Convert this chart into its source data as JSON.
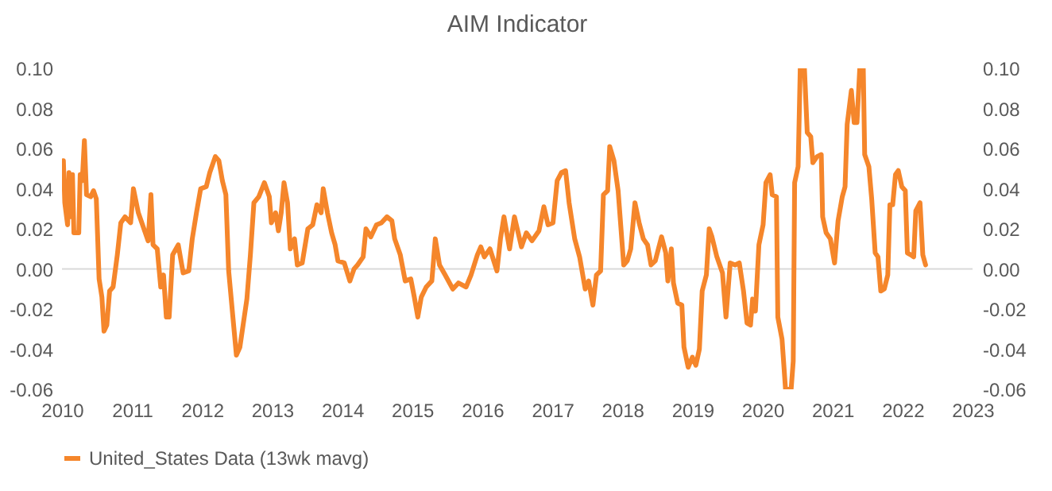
{
  "chart_data": {
    "type": "line",
    "title": "AIM Indicator",
    "x": [
      2010.02,
      2010.04,
      2010.08,
      2010.1,
      2010.13,
      2010.15,
      2010.17,
      2010.24,
      2010.26,
      2010.29,
      2010.32,
      2010.35,
      2010.41,
      2010.45,
      2010.49,
      2010.53,
      2010.57,
      2010.6,
      2010.64,
      2010.68,
      2010.73,
      2010.79,
      2010.84,
      2010.9,
      2010.98,
      2011.02,
      2011.09,
      2011.17,
      2011.23,
      2011.27,
      2011.3,
      2011.36,
      2011.41,
      2011.45,
      2011.49,
      2011.53,
      2011.58,
      2011.66,
      2011.73,
      2011.81,
      2011.86,
      2011.92,
      2011.98,
      2012.06,
      2012.11,
      2012.19,
      2012.24,
      2012.29,
      2012.34,
      2012.38,
      2012.44,
      2012.49,
      2012.54,
      2012.59,
      2012.64,
      2012.69,
      2012.74,
      2012.81,
      2012.89,
      2012.96,
      2012.99,
      2013.05,
      2013.09,
      2013.13,
      2013.17,
      2013.22,
      2013.26,
      2013.32,
      2013.36,
      2013.43,
      2013.51,
      2013.58,
      2013.64,
      2013.7,
      2013.73,
      2013.79,
      2013.85,
      2013.9,
      2013.94,
      2014.03,
      2014.11,
      2014.17,
      2014.22,
      2014.3,
      2014.34,
      2014.41,
      2014.49,
      2014.56,
      2014.64,
      2014.71,
      2014.75,
      2014.83,
      2014.9,
      2014.98,
      2015.03,
      2015.08,
      2015.13,
      2015.2,
      2015.28,
      2015.33,
      2015.39,
      2015.47,
      2015.58,
      2015.66,
      2015.77,
      2015.84,
      2015.93,
      2015.98,
      2016.03,
      2016.11,
      2016.21,
      2016.26,
      2016.31,
      2016.39,
      2016.46,
      2016.56,
      2016.63,
      2016.71,
      2016.81,
      2016.88,
      2016.94,
      2017.01,
      2017.07,
      2017.13,
      2017.19,
      2017.24,
      2017.32,
      2017.39,
      2017.47,
      2017.52,
      2017.58,
      2017.63,
      2017.69,
      2017.73,
      2017.79,
      2017.82,
      2017.88,
      2017.94,
      2018.02,
      2018.07,
      2018.12,
      2018.18,
      2018.24,
      2018.3,
      2018.36,
      2018.41,
      2018.47,
      2018.56,
      2018.62,
      2018.65,
      2018.7,
      2018.73,
      2018.79,
      2018.85,
      2018.88,
      2018.94,
      2019.0,
      2019.05,
      2019.1,
      2019.14,
      2019.2,
      2019.24,
      2019.28,
      2019.35,
      2019.43,
      2019.48,
      2019.54,
      2019.61,
      2019.67,
      2019.73,
      2019.78,
      2019.83,
      2019.86,
      2019.9,
      2019.95,
      2020.01,
      2020.05,
      2020.11,
      2020.14,
      2020.2,
      2020.22,
      2020.28,
      2020.33,
      2020.41,
      2020.44,
      2020.46,
      2020.51,
      2020.54,
      2020.6,
      2020.64,
      2020.69,
      2020.72,
      2020.78,
      2020.84,
      2020.86,
      2020.91,
      2020.97,
      2021.03,
      2021.08,
      2021.14,
      2021.18,
      2021.21,
      2021.27,
      2021.31,
      2021.35,
      2021.39,
      2021.44,
      2021.46,
      2021.52,
      2021.56,
      2021.61,
      2021.65,
      2021.69,
      2021.74,
      2021.79,
      2021.82,
      2021.86,
      2021.9,
      2021.94,
      2021.99,
      2022.04,
      2022.07,
      2022.12,
      2022.16,
      2022.19,
      2022.25,
      2022.29,
      2022.33
    ],
    "series": [
      {
        "name": "United_States Data (13wk mavg)",
        "color": "#f5862b",
        "values": [
          0.054,
          0.033,
          0.022,
          0.048,
          0.026,
          0.047,
          0.018,
          0.018,
          0.047,
          0.044,
          0.064,
          0.037,
          0.036,
          0.039,
          0.035,
          -0.005,
          -0.014,
          -0.031,
          -0.028,
          -0.011,
          -0.009,
          0.007,
          0.023,
          0.026,
          0.023,
          0.04,
          0.028,
          0.02,
          0.014,
          0.037,
          0.012,
          0.01,
          -0.009,
          -0.003,
          -0.024,
          -0.024,
          0.007,
          0.012,
          -0.002,
          -0.001,
          0.015,
          0.028,
          0.04,
          0.041,
          0.048,
          0.056,
          0.054,
          0.044,
          0.037,
          -0.001,
          -0.024,
          -0.043,
          -0.039,
          -0.027,
          -0.015,
          0.007,
          0.033,
          0.036,
          0.043,
          0.036,
          0.023,
          0.028,
          0.019,
          0.028,
          0.043,
          0.033,
          0.01,
          0.015,
          0.002,
          0.003,
          0.02,
          0.022,
          0.032,
          0.028,
          0.04,
          0.028,
          0.018,
          0.012,
          0.004,
          0.003,
          -0.006,
          0.0,
          0.002,
          0.006,
          0.02,
          0.016,
          0.022,
          0.023,
          0.026,
          0.024,
          0.015,
          0.007,
          -0.006,
          -0.005,
          -0.014,
          -0.024,
          -0.014,
          -0.009,
          -0.006,
          0.015,
          0.002,
          -0.003,
          -0.01,
          -0.007,
          -0.009,
          -0.003,
          0.007,
          0.011,
          0.006,
          0.01,
          -0.001,
          0.015,
          0.026,
          0.01,
          0.026,
          0.011,
          0.018,
          0.014,
          0.019,
          0.031,
          0.022,
          0.023,
          0.044,
          0.048,
          0.049,
          0.033,
          0.015,
          0.006,
          -0.01,
          -0.006,
          -0.018,
          -0.003,
          -0.001,
          0.037,
          0.039,
          0.061,
          0.054,
          0.039,
          0.002,
          0.004,
          0.01,
          0.033,
          0.023,
          0.015,
          0.012,
          0.002,
          0.004,
          0.016,
          0.008,
          -0.006,
          0.01,
          -0.007,
          -0.017,
          -0.018,
          -0.039,
          -0.049,
          -0.044,
          -0.048,
          -0.04,
          -0.011,
          -0.003,
          0.02,
          0.016,
          0.006,
          -0.002,
          -0.024,
          0.003,
          0.002,
          0.003,
          -0.011,
          -0.027,
          -0.028,
          -0.015,
          -0.021,
          0.012,
          0.022,
          0.043,
          0.047,
          0.037,
          0.036,
          -0.024,
          -0.035,
          -0.06,
          -0.06,
          -0.046,
          0.043,
          0.051,
          0.1,
          0.1,
          0.068,
          0.066,
          0.053,
          0.056,
          0.057,
          0.026,
          0.018,
          0.015,
          0.003,
          0.024,
          0.036,
          0.041,
          0.072,
          0.089,
          0.073,
          0.073,
          0.1,
          0.1,
          0.057,
          0.051,
          0.035,
          0.008,
          0.006,
          -0.011,
          -0.01,
          -0.003,
          0.032,
          0.032,
          0.047,
          0.049,
          0.041,
          0.039,
          0.008,
          0.007,
          0.006,
          0.029,
          0.033,
          0.007,
          0.002
        ]
      }
    ],
    "xlim": [
      2010,
      2023
    ],
    "xticks": [
      2010,
      2011,
      2012,
      2013,
      2014,
      2015,
      2016,
      2017,
      2018,
      2019,
      2020,
      2021,
      2022,
      2023
    ],
    "ylim": [
      -0.06,
      0.1
    ],
    "yticks": [
      {
        "value": -0.06,
        "label": "-0.06"
      },
      {
        "value": -0.04,
        "label": "-0.04"
      },
      {
        "value": -0.02,
        "label": "-0.02"
      },
      {
        "value": 0,
        "label": "0.00"
      },
      {
        "value": 0.02,
        "label": "0.02"
      },
      {
        "value": 0.04,
        "label": "0.04"
      },
      {
        "value": 0.06,
        "label": "0.06"
      },
      {
        "value": 0.08,
        "label": "0.08"
      },
      {
        "value": 0.1,
        "label": "0.10"
      }
    ],
    "y2lim": [
      -0.06,
      0.1
    ],
    "y2ticks": [
      {
        "value": -0.06,
        "label": "-0.06"
      },
      {
        "value": -0.04,
        "label": "-0.04"
      },
      {
        "value": -0.02,
        "label": "-0.02"
      },
      {
        "value": 0,
        "label": "0.00"
      },
      {
        "value": 0.02,
        "label": "0.02"
      },
      {
        "value": 0.04,
        "label": "0.04"
      },
      {
        "value": 0.06,
        "label": "0.06"
      },
      {
        "value": 0.08,
        "label": "0.08"
      },
      {
        "value": 0.1,
        "label": "0.10"
      }
    ],
    "ref_lines": [
      {
        "axis": "y",
        "value": 0,
        "color": "#d9d9d9"
      }
    ],
    "grid": false,
    "legend": "bottom",
    "line_style": "solid",
    "marker": "none"
  }
}
